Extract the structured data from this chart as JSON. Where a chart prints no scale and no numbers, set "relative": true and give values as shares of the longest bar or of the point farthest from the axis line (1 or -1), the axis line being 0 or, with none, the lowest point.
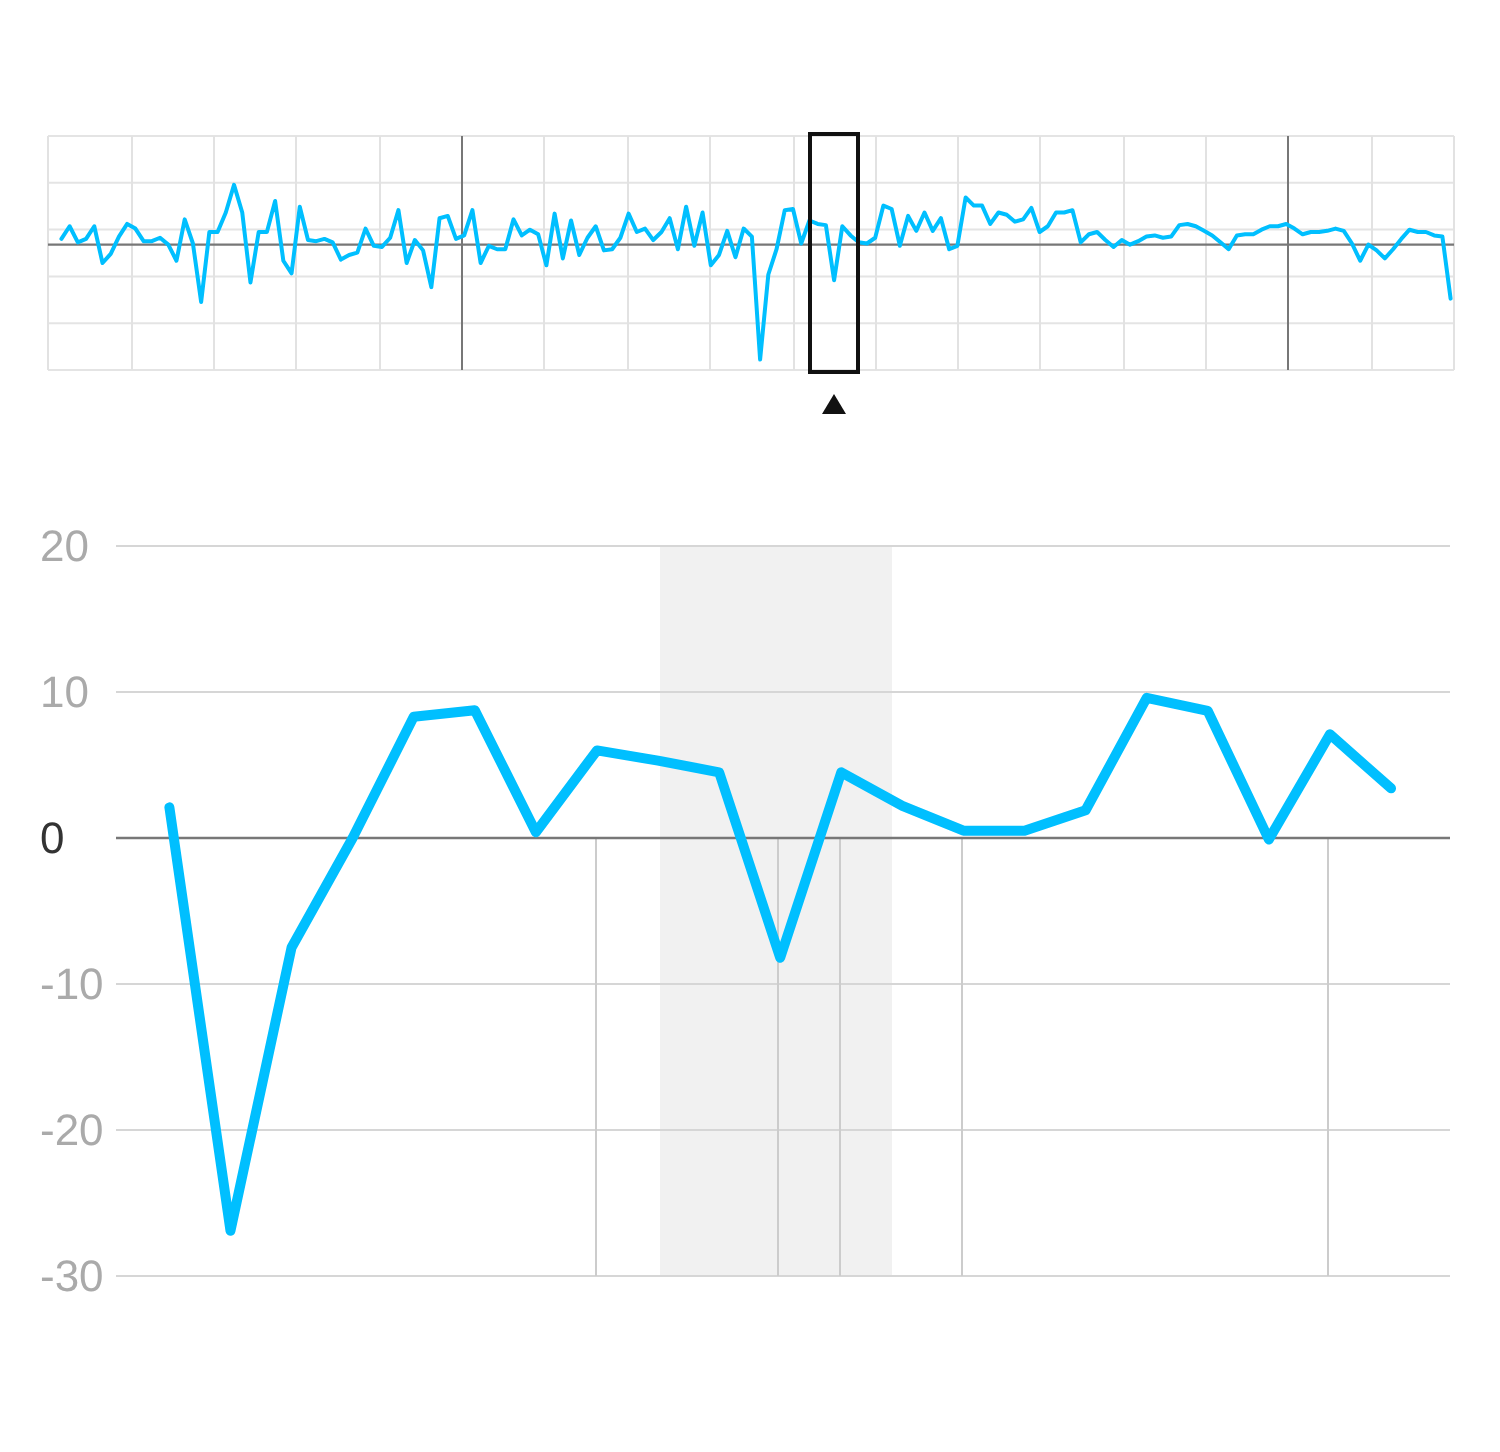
{
  "chart_data": [
    {
      "type": "line",
      "relative": true,
      "tick_labels": false,
      "grid": true,
      "categories": [
        null,
        null,
        null,
        null,
        null,
        null,
        null,
        null,
        null,
        null,
        null,
        null,
        null,
        null,
        null,
        null,
        null,
        null,
        null,
        null,
        null,
        null,
        null,
        null,
        null,
        null,
        null,
        null,
        null,
        null,
        null,
        null,
        null,
        null,
        null,
        null,
        null,
        null,
        null,
        null,
        null,
        null,
        null,
        null,
        null,
        null,
        null,
        null,
        null,
        null,
        null,
        null,
        null,
        null,
        null,
        null,
        null,
        null,
        null,
        null,
        null,
        null,
        null,
        null,
        null,
        null,
        null,
        null,
        null,
        null,
        null,
        null,
        null,
        null,
        null,
        null,
        null,
        null,
        null,
        null,
        null,
        null,
        null,
        null,
        null,
        null,
        null,
        null,
        null,
        null,
        null,
        null,
        null,
        null,
        null,
        null,
        null,
        null,
        null,
        null,
        null,
        null,
        null,
        null,
        null,
        null,
        null,
        null,
        null,
        null,
        null,
        null,
        null,
        null,
        null,
        null,
        null,
        null,
        null,
        null,
        null,
        null,
        null,
        null,
        null,
        null,
        null,
        null,
        null,
        null,
        null,
        null,
        null,
        null,
        null,
        null,
        null,
        null,
        null,
        null,
        null,
        null,
        null,
        null,
        null,
        null,
        null,
        null,
        null,
        null,
        null,
        null,
        null,
        null,
        null,
        null,
        null,
        null,
        null,
        null,
        null,
        null,
        null,
        null,
        null,
        null,
        null,
        null,
        null,
        null
      ],
      "series": [
        {
          "color": "#00bfff",
          "values": [
            0.05,
            0.16,
            0.02,
            0.05,
            0.16,
            -0.16,
            -0.08,
            0.07,
            0.18,
            0.14,
            0.03,
            0.03,
            0.06,
            0,
            -0.14,
            0.22,
            0.01,
            -0.5,
            0.11,
            0.11,
            0.28,
            0.52,
            0.28,
            -0.33,
            0.11,
            0.11,
            0.38,
            -0.14,
            -0.25,
            0.33,
            0.04,
            0.03,
            0.05,
            0.02,
            -0.13,
            -0.09,
            -0.07,
            0.14,
            -0.01,
            -0.02,
            0.06,
            0.3,
            -0.16,
            0.04,
            -0.05,
            -0.37,
            0.23,
            0.25,
            0.05,
            0.08,
            0.3,
            -0.16,
            -0.01,
            -0.04,
            -0.04,
            0.22,
            0.08,
            0.13,
            0.09,
            -0.18,
            0.27,
            -0.12,
            0.21,
            -0.09,
            0.06,
            0.16,
            -0.05,
            -0.04,
            0.06,
            0.27,
            0.11,
            0.14,
            0.04,
            0.11,
            0.23,
            -0.04,
            0.33,
            -0.01,
            0.28,
            -0.18,
            -0.09,
            0.12,
            -0.11,
            0.14,
            0.07,
            -1,
            -0.26,
            -0.04,
            0.3,
            0.31,
            0.01,
            0.21,
            0.18,
            0.17,
            -0.31,
            0.16,
            0.08,
            0.02,
            0.01,
            0.06,
            0.34,
            0.31,
            -0.01,
            0.25,
            0.12,
            0.28,
            0.12,
            0.23,
            -0.04,
            -0.01,
            0.41,
            0.34,
            0.34,
            0.18,
            0.28,
            0.26,
            0.2,
            0.22,
            0.32,
            0.11,
            0.16,
            0.28,
            0.28,
            0.3,
            0.02,
            0.09,
            0.11,
            0.04,
            -0.02,
            0.04,
            0,
            0.03,
            0.07,
            0.08,
            0.06,
            0.07,
            0.17,
            0.18,
            0.16,
            0.12,
            0.08,
            0.02,
            -0.04,
            0.08,
            0.09,
            0.09,
            0.13,
            0.16,
            0.16,
            0.18,
            0.14,
            0.09,
            0.11,
            0.11,
            0.12,
            0.14,
            0.12,
            0.01,
            -0.14,
            0,
            -0.05,
            -0.12,
            -0.04,
            0.05,
            0.13,
            0.11,
            0.11,
            0.08,
            0.07,
            -0.47
          ]
        }
      ]
    },
    {
      "type": "line",
      "grid": "y",
      "tick_labels": "y",
      "categories": [
        null,
        null,
        null,
        null,
        null,
        null,
        null,
        null,
        null,
        null,
        null,
        null,
        null,
        null,
        null,
        null,
        null,
        null,
        null,
        null,
        null
      ],
      "ylim": [
        -30,
        20
      ],
      "yticks": [
        -30,
        -20,
        -10,
        0,
        10,
        20
      ],
      "series": [
        {
          "color": "#00bfff",
          "values": [
            2.1,
            -26.9,
            -7.5,
            0,
            8.3,
            8.75,
            0.4,
            6,
            5.3,
            4.5,
            -8.2,
            4.5,
            2.2,
            0.5,
            0.5,
            1.9,
            9.6,
            8.7,
            -0.1,
            7.1,
            3.4
          ]
        }
      ]
    }
  ]
}
